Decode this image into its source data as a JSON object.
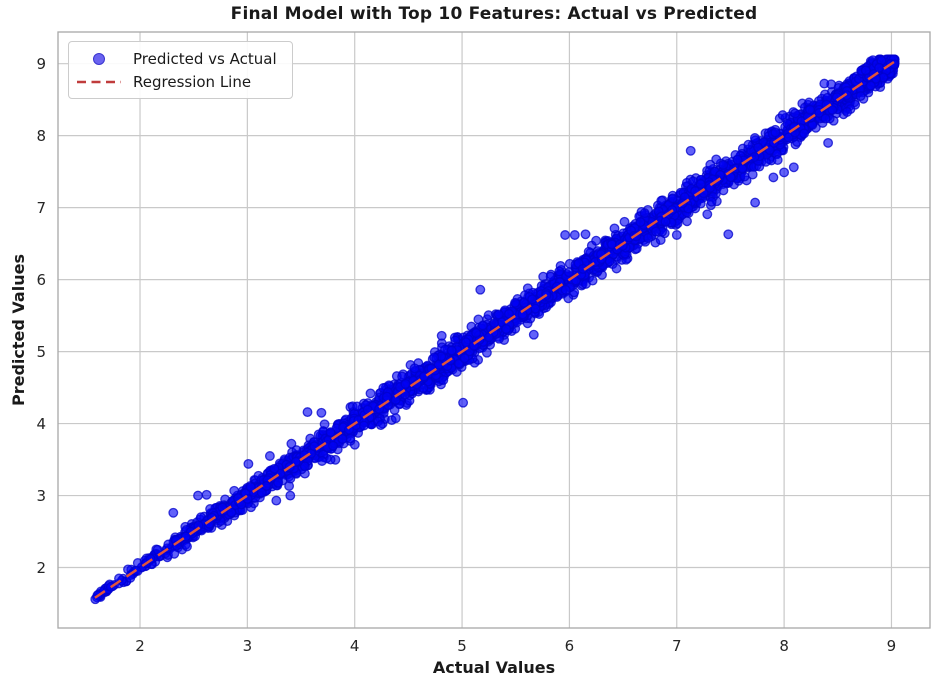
{
  "figure": {
    "background": "#ffffff"
  },
  "chart_data": {
    "type": "scatter",
    "title": "Final Model with Top 10 Features: Actual vs Predicted",
    "xlabel": "Actual Values",
    "ylabel": "Predicted Values",
    "xlim": [
      1.236,
      9.359
    ],
    "ylim": [
      1.16,
      9.44
    ],
    "x_ticks": [
      2,
      3,
      4,
      5,
      6,
      7,
      8,
      9
    ],
    "y_ticks": [
      2,
      3,
      4,
      5,
      6,
      7,
      8,
      9
    ],
    "grid": true,
    "grid_color": "#c9c9c9",
    "spine_color": "#a8a8a8",
    "text_color": "#1a1a1a",
    "tick_color": "#262626",
    "legend": {
      "position": "upper-left",
      "entries": [
        {
          "label": "Predicted vs Actual",
          "marker": "circle"
        },
        {
          "label": "Regression Line",
          "marker": "dashed-line"
        }
      ],
      "marker_fill": "#6a63f0",
      "marker_edge": "#3a35cf",
      "dash_color": "#c03c3c"
    },
    "series": [
      {
        "name": "Predicted vs Actual",
        "type": "scatter",
        "marker_fill": "#0202f5",
        "marker_fill_opacity": 0.62,
        "marker_edge": "#0000cc",
        "marker_edge_opacity": 0.75,
        "marker_radius": 4.3,
        "relationship": "y approximately equals x with small noise",
        "generator": {
          "seed": 42,
          "n": 3000,
          "segments": [
            {
              "frac": 0.03,
              "x0": 1.58,
              "x1": 2.32,
              "s0": 0.025,
              "s1": 0.05,
              "pow": 1.0
            },
            {
              "frac": 0.21,
              "x0": 2.32,
              "x1": 4.0,
              "s0": 0.05,
              "s1": 0.11,
              "pow": 0.95
            },
            {
              "frac": 0.69,
              "x0": 4.0,
              "x1": 9.0,
              "s0": 0.115,
              "s1": 0.1,
              "pow": 0.9
            },
            {
              "frac": 0.07,
              "x0": 8.78,
              "x1": 9.03,
              "s0": 0.075,
              "s1": 0.07,
              "pow": 1.0
            }
          ],
          "clip_sigma": 2.7,
          "fat_tail_prob": 0.02,
          "fat_tail_mult": 1.8,
          "y_min": 1.5,
          "y_max": 9.06
        },
        "notable_outliers": [
          [
            2.31,
            2.76
          ],
          [
            2.54,
            3.0
          ],
          [
            2.62,
            3.01
          ],
          [
            3.01,
            3.44
          ],
          [
            3.21,
            3.55
          ],
          [
            3.41,
            3.72
          ],
          [
            3.56,
            4.16
          ],
          [
            3.69,
            4.15
          ],
          [
            3.27,
            2.93
          ],
          [
            3.4,
            3.0
          ],
          [
            4.81,
            5.22
          ],
          [
            5.01,
            4.29
          ],
          [
            5.17,
            5.86
          ],
          [
            5.99,
            5.74
          ],
          [
            5.96,
            6.62
          ],
          [
            6.05,
            6.62
          ],
          [
            6.15,
            6.63
          ],
          [
            6.85,
            6.55
          ],
          [
            7.0,
            6.62
          ],
          [
            7.48,
            6.63
          ],
          [
            7.13,
            7.79
          ],
          [
            7.73,
            7.07
          ],
          [
            7.9,
            7.42
          ],
          [
            8.0,
            7.49
          ],
          [
            8.09,
            7.56
          ],
          [
            8.41,
            7.9
          ]
        ]
      },
      {
        "name": "Regression Line",
        "type": "line",
        "style": "dashed",
        "color": "#e2543a",
        "dash": [
          12,
          7
        ],
        "width": 2.5,
        "x": [
          1.58,
          9.03
        ],
        "y": [
          1.58,
          9.03
        ]
      }
    ]
  }
}
